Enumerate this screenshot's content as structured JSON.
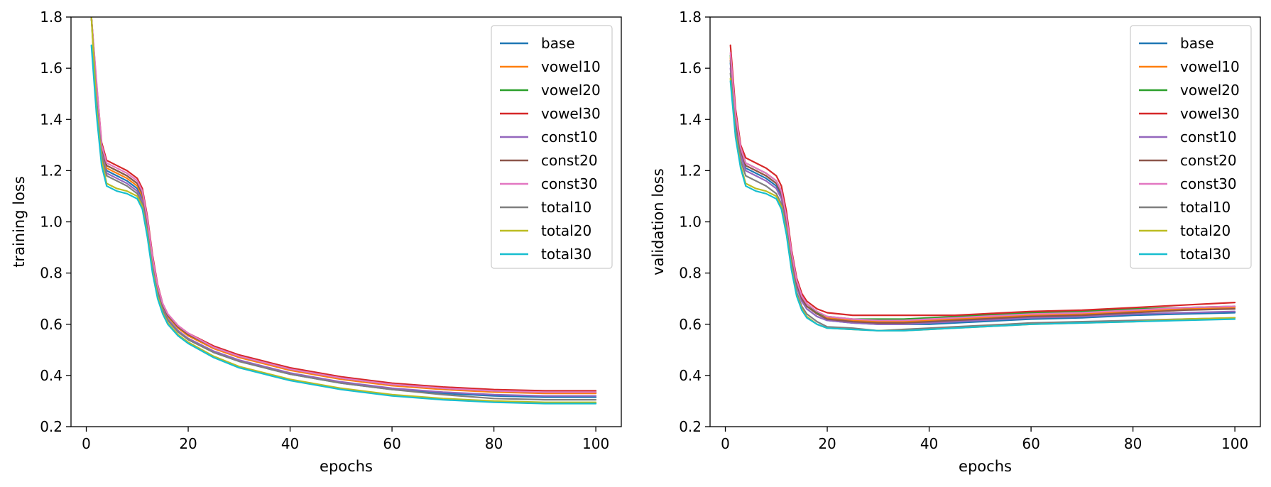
{
  "colors": {
    "base": "#1f77b4",
    "vowel10": "#ff7f0e",
    "vowel20": "#2ca02c",
    "vowel30": "#d62728",
    "const10": "#9467bd",
    "const20": "#8c564b",
    "const30": "#e377c2",
    "total10": "#7f7f7f",
    "total20": "#bcbd22",
    "total30": "#17becf"
  },
  "chart_data": [
    {
      "type": "line",
      "title": "",
      "xlabel": "epochs",
      "ylabel": "training loss",
      "xlim": [
        -3,
        105
      ],
      "ylim": [
        0.2,
        1.8
      ],
      "xticks": [
        0,
        20,
        40,
        60,
        80,
        100
      ],
      "xtick_labels": [
        "0",
        "20",
        "40",
        "60",
        "80",
        "100"
      ],
      "yticks": [
        0.2,
        0.4,
        0.6,
        0.8,
        1.0,
        1.2,
        1.4,
        1.6,
        1.8
      ],
      "ytick_labels": [
        "0.2",
        "0.4",
        "0.6",
        "0.8",
        "1.0",
        "1.2",
        "1.4",
        "1.6",
        "1.8"
      ],
      "grid": false,
      "legend": "top-right",
      "x": [
        1,
        2,
        3,
        4,
        6,
        8,
        10,
        11,
        12,
        13,
        14,
        15,
        16,
        18,
        20,
        25,
        30,
        35,
        40,
        50,
        60,
        70,
        80,
        90,
        100
      ],
      "series": [
        {
          "name": "base",
          "values": [
            1.8,
            1.5,
            1.28,
            1.2,
            1.18,
            1.16,
            1.13,
            1.09,
            0.98,
            0.84,
            0.73,
            0.66,
            0.62,
            0.575,
            0.54,
            0.49,
            0.455,
            0.43,
            0.405,
            0.37,
            0.345,
            0.33,
            0.32,
            0.315,
            0.315
          ]
        },
        {
          "name": "vowel10",
          "values": [
            1.8,
            1.52,
            1.29,
            1.21,
            1.19,
            1.17,
            1.14,
            1.1,
            0.99,
            0.85,
            0.74,
            0.67,
            0.63,
            0.585,
            0.555,
            0.505,
            0.47,
            0.445,
            0.42,
            0.385,
            0.36,
            0.345,
            0.335,
            0.33,
            0.33
          ]
        },
        {
          "name": "vowel20",
          "values": [
            1.8,
            1.51,
            1.29,
            1.22,
            1.2,
            1.18,
            1.15,
            1.11,
            1.0,
            0.86,
            0.745,
            0.675,
            0.635,
            0.59,
            0.56,
            0.51,
            0.475,
            0.45,
            0.425,
            0.39,
            0.365,
            0.35,
            0.34,
            0.335,
            0.335
          ]
        },
        {
          "name": "vowel30",
          "values": [
            1.8,
            1.54,
            1.31,
            1.24,
            1.22,
            1.2,
            1.17,
            1.13,
            1.02,
            0.87,
            0.755,
            0.68,
            0.64,
            0.595,
            0.565,
            0.515,
            0.48,
            0.455,
            0.43,
            0.395,
            0.37,
            0.355,
            0.345,
            0.34,
            0.34
          ]
        },
        {
          "name": "const10",
          "values": [
            1.8,
            1.49,
            1.27,
            1.19,
            1.17,
            1.15,
            1.12,
            1.08,
            0.97,
            0.83,
            0.725,
            0.66,
            0.62,
            0.575,
            0.545,
            0.495,
            0.46,
            0.435,
            0.41,
            0.375,
            0.35,
            0.335,
            0.325,
            0.32,
            0.32
          ]
        },
        {
          "name": "const20",
          "values": [
            1.8,
            1.52,
            1.3,
            1.22,
            1.2,
            1.18,
            1.15,
            1.11,
            1.0,
            0.86,
            0.745,
            0.675,
            0.635,
            0.59,
            0.56,
            0.51,
            0.475,
            0.45,
            0.425,
            0.39,
            0.365,
            0.35,
            0.34,
            0.335,
            0.335
          ]
        },
        {
          "name": "const30",
          "values": [
            1.8,
            1.55,
            1.3,
            1.23,
            1.21,
            1.19,
            1.16,
            1.12,
            1.01,
            0.86,
            0.75,
            0.68,
            0.64,
            0.595,
            0.565,
            0.51,
            0.475,
            0.45,
            0.425,
            0.39,
            0.365,
            0.35,
            0.34,
            0.335,
            0.335
          ]
        },
        {
          "name": "total10",
          "values": [
            1.8,
            1.47,
            1.26,
            1.18,
            1.16,
            1.14,
            1.11,
            1.07,
            0.96,
            0.82,
            0.72,
            0.655,
            0.615,
            0.57,
            0.54,
            0.49,
            0.455,
            0.43,
            0.405,
            0.37,
            0.345,
            0.325,
            0.31,
            0.305,
            0.305
          ]
        },
        {
          "name": "total20",
          "values": [
            1.8,
            1.45,
            1.24,
            1.15,
            1.13,
            1.12,
            1.1,
            1.06,
            0.95,
            0.81,
            0.71,
            0.645,
            0.605,
            0.56,
            0.53,
            0.475,
            0.435,
            0.41,
            0.385,
            0.35,
            0.325,
            0.31,
            0.3,
            0.295,
            0.295
          ]
        },
        {
          "name": "total30",
          "values": [
            1.69,
            1.42,
            1.22,
            1.14,
            1.12,
            1.11,
            1.09,
            1.05,
            0.94,
            0.8,
            0.7,
            0.64,
            0.6,
            0.555,
            0.525,
            0.47,
            0.43,
            0.405,
            0.38,
            0.345,
            0.32,
            0.305,
            0.295,
            0.29,
            0.29
          ]
        }
      ]
    },
    {
      "type": "line",
      "title": "",
      "xlabel": "epochs",
      "ylabel": "validation loss",
      "xlim": [
        -3,
        105
      ],
      "ylim": [
        0.2,
        1.8
      ],
      "xticks": [
        0,
        20,
        40,
        60,
        80,
        100
      ],
      "xtick_labels": [
        "0",
        "20",
        "40",
        "60",
        "80",
        "100"
      ],
      "yticks": [
        0.2,
        0.4,
        0.6,
        0.8,
        1.0,
        1.2,
        1.4,
        1.6,
        1.8
      ],
      "ytick_labels": [
        "0.2",
        "0.4",
        "0.6",
        "0.8",
        "1.0",
        "1.2",
        "1.4",
        "1.6",
        "1.8"
      ],
      "grid": false,
      "legend": "top-right",
      "x": [
        1,
        2,
        3,
        4,
        6,
        8,
        10,
        11,
        12,
        13,
        14,
        15,
        16,
        18,
        20,
        25,
        30,
        35,
        40,
        45,
        50,
        55,
        60,
        70,
        80,
        90,
        100
      ],
      "series": [
        {
          "name": "base",
          "values": [
            1.62,
            1.4,
            1.27,
            1.21,
            1.19,
            1.17,
            1.14,
            1.1,
            1.0,
            0.86,
            0.75,
            0.69,
            0.66,
            0.63,
            0.615,
            0.605,
            0.6,
            0.6,
            0.6,
            0.605,
            0.61,
            0.615,
            0.62,
            0.625,
            0.635,
            0.64,
            0.645
          ]
        },
        {
          "name": "vowel10",
          "values": [
            1.64,
            1.41,
            1.28,
            1.22,
            1.2,
            1.18,
            1.15,
            1.11,
            1.01,
            0.87,
            0.76,
            0.7,
            0.67,
            0.64,
            0.625,
            0.615,
            0.61,
            0.61,
            0.615,
            0.62,
            0.625,
            0.63,
            0.635,
            0.64,
            0.65,
            0.66,
            0.665
          ]
        },
        {
          "name": "vowel20",
          "values": [
            1.65,
            1.42,
            1.29,
            1.23,
            1.21,
            1.19,
            1.16,
            1.12,
            1.02,
            0.88,
            0.77,
            0.71,
            0.68,
            0.645,
            0.63,
            0.62,
            0.62,
            0.62,
            0.625,
            0.63,
            0.635,
            0.64,
            0.645,
            0.65,
            0.66,
            0.665,
            0.67
          ]
        },
        {
          "name": "vowel30",
          "values": [
            1.69,
            1.44,
            1.3,
            1.25,
            1.23,
            1.21,
            1.18,
            1.14,
            1.04,
            0.89,
            0.78,
            0.72,
            0.69,
            0.66,
            0.645,
            0.635,
            0.635,
            0.635,
            0.635,
            0.635,
            0.64,
            0.645,
            0.65,
            0.655,
            0.665,
            0.675,
            0.685
          ]
        },
        {
          "name": "const10",
          "values": [
            1.6,
            1.38,
            1.26,
            1.2,
            1.18,
            1.16,
            1.13,
            1.09,
            0.99,
            0.85,
            0.745,
            0.69,
            0.66,
            0.63,
            0.615,
            0.605,
            0.6,
            0.6,
            0.605,
            0.61,
            0.615,
            0.62,
            0.625,
            0.63,
            0.64,
            0.645,
            0.65
          ]
        },
        {
          "name": "const20",
          "values": [
            1.63,
            1.4,
            1.28,
            1.22,
            1.2,
            1.18,
            1.15,
            1.11,
            1.01,
            0.87,
            0.76,
            0.7,
            0.67,
            0.64,
            0.62,
            0.61,
            0.605,
            0.605,
            0.61,
            0.615,
            0.62,
            0.625,
            0.63,
            0.635,
            0.645,
            0.655,
            0.66
          ]
        },
        {
          "name": "const30",
          "values": [
            1.66,
            1.42,
            1.29,
            1.23,
            1.21,
            1.19,
            1.16,
            1.12,
            1.02,
            0.88,
            0.77,
            0.71,
            0.68,
            0.65,
            0.63,
            0.62,
            0.615,
            0.615,
            0.62,
            0.625,
            0.63,
            0.635,
            0.64,
            0.645,
            0.655,
            0.665,
            0.67
          ]
        },
        {
          "name": "total10",
          "values": [
            1.58,
            1.36,
            1.24,
            1.18,
            1.16,
            1.14,
            1.11,
            1.07,
            0.97,
            0.83,
            0.725,
            0.67,
            0.64,
            0.61,
            0.59,
            0.585,
            0.575,
            0.58,
            0.585,
            0.59,
            0.595,
            0.6,
            0.605,
            0.61,
            0.615,
            0.62,
            0.625
          ]
        },
        {
          "name": "total20",
          "values": [
            1.56,
            1.34,
            1.22,
            1.15,
            1.13,
            1.12,
            1.1,
            1.06,
            0.96,
            0.82,
            0.715,
            0.66,
            0.63,
            0.6,
            0.585,
            0.58,
            0.575,
            0.575,
            0.58,
            0.585,
            0.59,
            0.595,
            0.6,
            0.605,
            0.61,
            0.62,
            0.625
          ]
        },
        {
          "name": "total30",
          "values": [
            1.55,
            1.33,
            1.21,
            1.14,
            1.12,
            1.11,
            1.09,
            1.05,
            0.95,
            0.81,
            0.71,
            0.655,
            0.625,
            0.6,
            0.585,
            0.58,
            0.575,
            0.575,
            0.58,
            0.585,
            0.59,
            0.595,
            0.6,
            0.605,
            0.61,
            0.615,
            0.62
          ]
        }
      ]
    }
  ]
}
